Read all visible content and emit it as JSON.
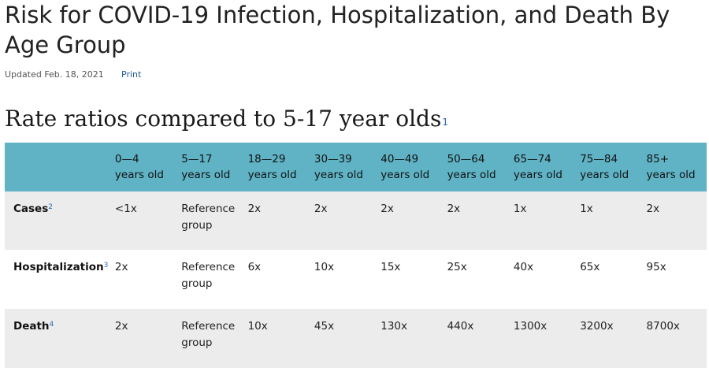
{
  "page": {
    "title": "Risk for COVID-19 Infection, Hospitalization, and Death By Age Group",
    "updated": "Updated Feb. 18, 2021",
    "print_label": "Print"
  },
  "section": {
    "heading": "Rate ratios compared to 5-17 year olds",
    "footnote": "1"
  },
  "table": {
    "columns": [
      {
        "range": "0—4",
        "unit": "years old"
      },
      {
        "range": "5—17",
        "unit": "years old"
      },
      {
        "range": "18—29",
        "unit": "years old"
      },
      {
        "range": "30—39",
        "unit": "years old"
      },
      {
        "range": "40—49",
        "unit": "years old"
      },
      {
        "range": "50—64",
        "unit": "years old"
      },
      {
        "range": "65—74",
        "unit": "years old"
      },
      {
        "range": "75—84",
        "unit": "years old"
      },
      {
        "range": "85+",
        "unit": "years old"
      }
    ],
    "rows": [
      {
        "label": "Cases",
        "footnote": "2",
        "cells": [
          "<1x",
          "Reference group",
          "2x",
          "2x",
          "2x",
          "2x",
          "1x",
          "1x",
          "2x"
        ]
      },
      {
        "label": "Hospitalization",
        "footnote": "3",
        "cells": [
          "2x",
          "Reference group",
          "6x",
          "10x",
          "15x",
          "25x",
          "40x",
          "65x",
          "95x"
        ]
      },
      {
        "label": "Death",
        "footnote": "4",
        "cells": [
          "2x",
          "Reference group",
          "10x",
          "45x",
          "130x",
          "440x",
          "1300x",
          "3200x",
          "8700x"
        ]
      }
    ]
  },
  "colors": {
    "header_bg": "#5fb3c5",
    "row_shade": "#ececec",
    "link": "#1f5a9a"
  }
}
